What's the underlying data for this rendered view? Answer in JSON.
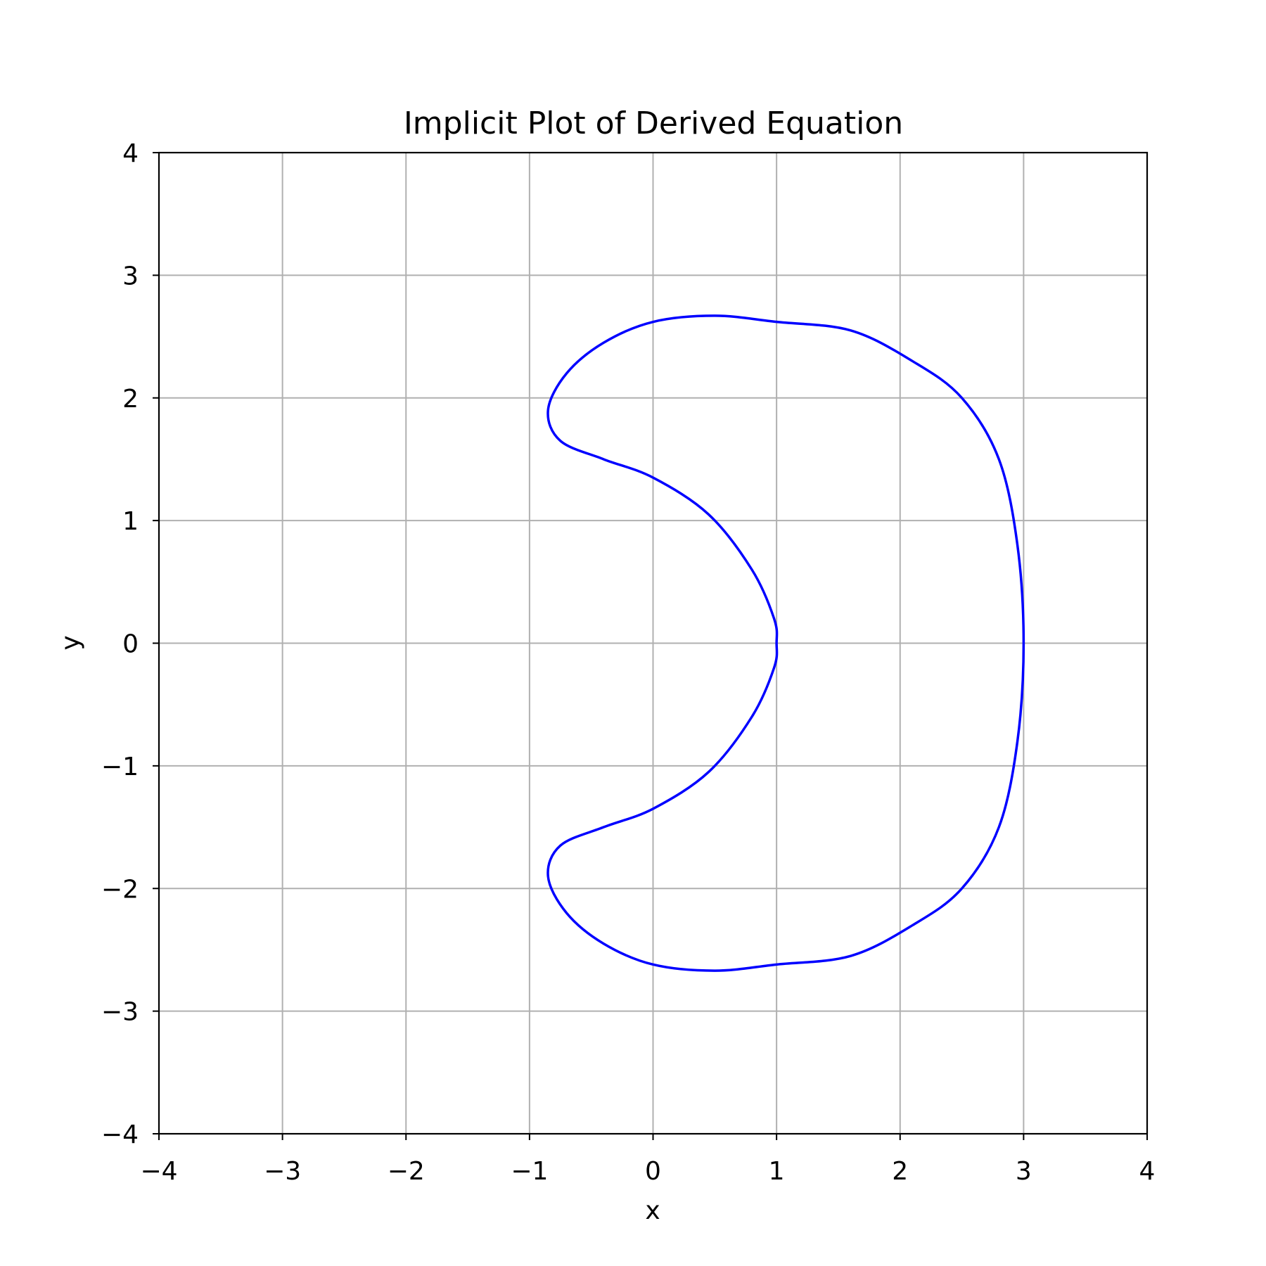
{
  "chart_data": {
    "type": "line",
    "title": "Implicit Plot of Derived Equation",
    "xlabel": "x",
    "ylabel": "y",
    "xlim": [
      -4,
      4
    ],
    "ylim": [
      -4,
      4
    ],
    "grid": true,
    "x_ticks": [
      -4,
      -3,
      -2,
      -1,
      0,
      1,
      2,
      3,
      4
    ],
    "y_ticks": [
      -4,
      -3,
      -2,
      -1,
      0,
      1,
      2,
      3,
      4
    ],
    "x_tick_labels": [
      "−4",
      "−3",
      "−2",
      "−1",
      "0",
      "1",
      "2",
      "3",
      "4"
    ],
    "y_tick_labels": [
      "−4",
      "−3",
      "−2",
      "−1",
      "0",
      "1",
      "2",
      "3",
      "4"
    ],
    "colors": {
      "curve": "#0000ff",
      "grid": "#b0b0b0",
      "axes": "#000000"
    },
    "series": [
      {
        "closed": true,
        "x": [
          3.0,
          2.95,
          2.8,
          2.5,
          2.1,
          1.6,
          1.0,
          0.5,
          0.0,
          -0.4,
          -0.7,
          -0.85,
          -0.75,
          -0.4,
          0.0,
          0.45,
          0.8,
          0.98,
          1.0,
          0.98,
          0.8,
          0.45,
          0.0,
          -0.4,
          -0.75,
          -0.85,
          -0.7,
          -0.4,
          0.0,
          0.5,
          1.0,
          1.6,
          2.1,
          2.5,
          2.8,
          2.95,
          3.0
        ],
        "y": [
          0.0,
          0.8,
          1.5,
          2.0,
          2.3,
          2.55,
          2.62,
          2.67,
          2.62,
          2.45,
          2.2,
          1.9,
          1.65,
          1.5,
          1.35,
          1.05,
          0.6,
          0.2,
          0.0,
          -0.2,
          -0.6,
          -1.05,
          -1.35,
          -1.5,
          -1.65,
          -1.9,
          -2.2,
          -2.45,
          -2.62,
          -2.67,
          -2.62,
          -2.55,
          -2.3,
          -2.0,
          -1.5,
          -0.8,
          0.0
        ]
      }
    ]
  }
}
